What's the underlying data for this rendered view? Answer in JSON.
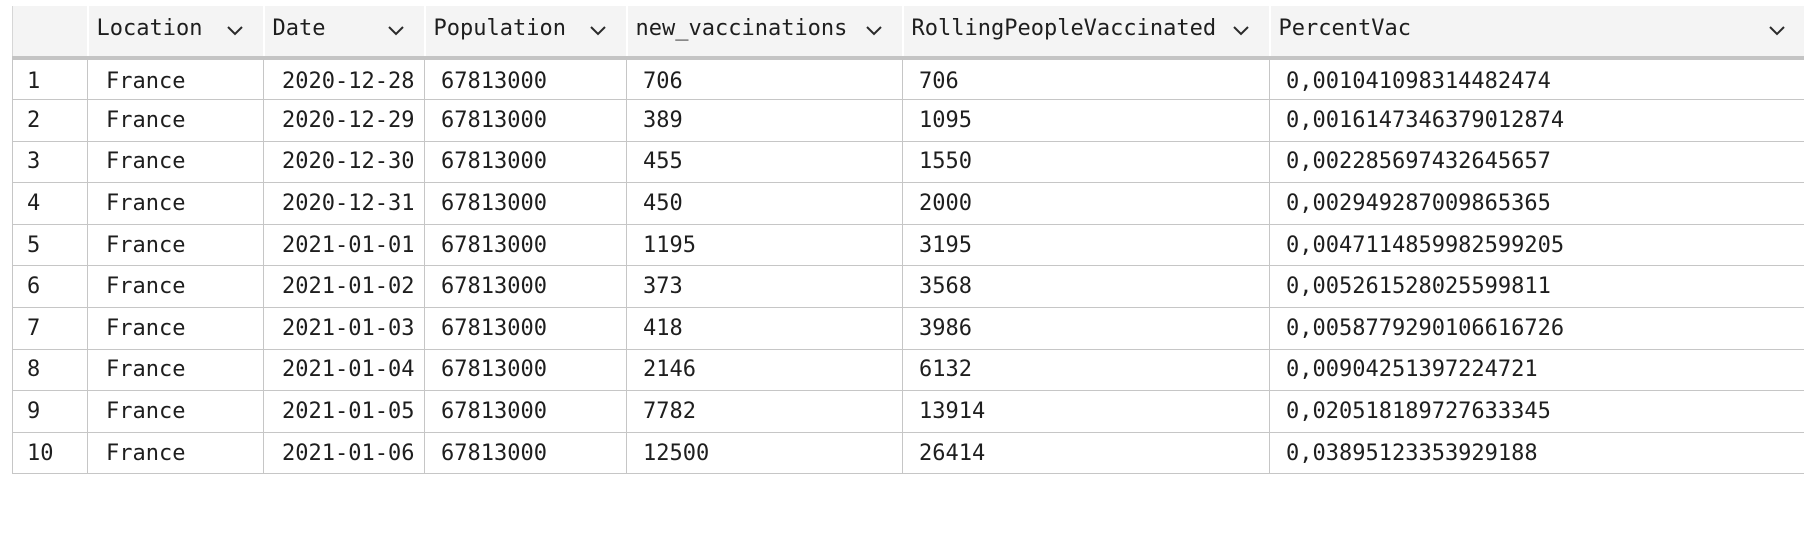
{
  "grid": {
    "columns": [
      {
        "key": "index",
        "label": ""
      },
      {
        "key": "location",
        "label": "Location"
      },
      {
        "key": "date",
        "label": "Date"
      },
      {
        "key": "population",
        "label": "Population"
      },
      {
        "key": "new_vaccinations",
        "label": "new_vaccinations"
      },
      {
        "key": "rolling",
        "label": "RollingPeopleVaccinated"
      },
      {
        "key": "percent",
        "label": "PercentVac"
      }
    ],
    "rows": [
      {
        "index": "1",
        "location": "France",
        "date": "2020-12-28",
        "population": "67813000",
        "new_vaccinations": "706",
        "rolling": "706",
        "percent": "0,001041098314482474"
      },
      {
        "index": "2",
        "location": "France",
        "date": "2020-12-29",
        "population": "67813000",
        "new_vaccinations": "389",
        "rolling": "1095",
        "percent": "0,0016147346379012874"
      },
      {
        "index": "3",
        "location": "France",
        "date": "2020-12-30",
        "population": "67813000",
        "new_vaccinations": "455",
        "rolling": "1550",
        "percent": "0,002285697432645657"
      },
      {
        "index": "4",
        "location": "France",
        "date": "2020-12-31",
        "population": "67813000",
        "new_vaccinations": "450",
        "rolling": "2000",
        "percent": "0,00294928700986536 5"
      },
      {
        "index": "5",
        "location": "France",
        "date": "2021-01-01",
        "population": "67813000",
        "new_vaccinations": "1195",
        "rolling": "3195",
        "percent": "0,004711485998259920 5"
      },
      {
        "index": "6",
        "location": "France",
        "date": "2021-01-02",
        "population": "67813000",
        "new_vaccinations": "373",
        "rolling": "3568",
        "percent": "0,00526152802559981 1"
      },
      {
        "index": "7",
        "location": "France",
        "date": "2021-01-03",
        "population": "67813000",
        "new_vaccinations": "418",
        "rolling": "3986",
        "percent": "0,005877929010661672 6"
      },
      {
        "index": "8",
        "location": "France",
        "date": "2021-01-04",
        "population": "67813000",
        "new_vaccinations": "2146",
        "rolling": "6132",
        "percent": "0,00904251397224721"
      },
      {
        "index": "9",
        "location": "France",
        "date": "2021-01-05",
        "population": "67813000",
        "new_vaccinations": "7782",
        "rolling": "13914",
        "percent": "0,020518189727633345"
      },
      {
        "index": "10",
        "location": "France",
        "date": "2021-01-06",
        "population": "67813000",
        "new_vaccinations": "12500",
        "rolling": "26414",
        "percent": "0,03895123353929188"
      }
    ]
  },
  "icons": {
    "sort": "chevron-down-icon"
  },
  "colors": {
    "header_bg": "#f4f4f4",
    "grid_line": "#c6c6c6",
    "header_rule": "#c4c4c4",
    "text": "#1e1e1e"
  }
}
